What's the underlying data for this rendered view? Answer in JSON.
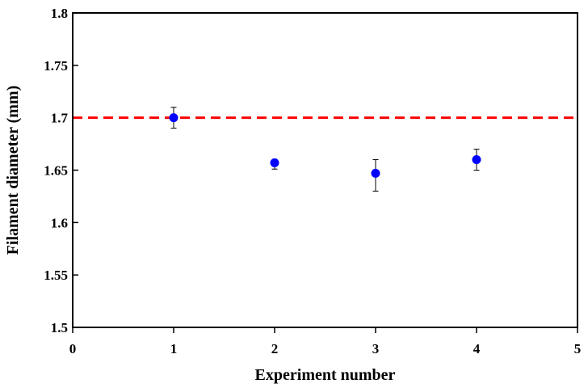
{
  "chart_data": {
    "type": "scatter",
    "xlabel": "Experiment number",
    "ylabel": "Filament diameter (mm)",
    "xlim": [
      0,
      5
    ],
    "ylim": [
      1.5,
      1.8
    ],
    "x_ticks": [
      "0",
      "1",
      "2",
      "3",
      "4",
      "5"
    ],
    "y_ticks": [
      "1.5",
      "1.55",
      "1.6",
      "1.65",
      "1.7",
      "1.75",
      "1.8"
    ],
    "grid": false,
    "legend": "none",
    "series": [
      {
        "x": [
          1,
          2,
          3,
          4
        ],
        "y": [
          1.7,
          1.657,
          1.647,
          1.66
        ],
        "error_low": [
          1.69,
          1.651,
          1.63,
          1.65
        ],
        "error_high": [
          1.71,
          1.66,
          1.66,
          1.67
        ],
        "color": "#0000ff"
      }
    ],
    "reference_line": {
      "y": 1.7,
      "style": "dashed",
      "color": "#ff0000"
    }
  }
}
